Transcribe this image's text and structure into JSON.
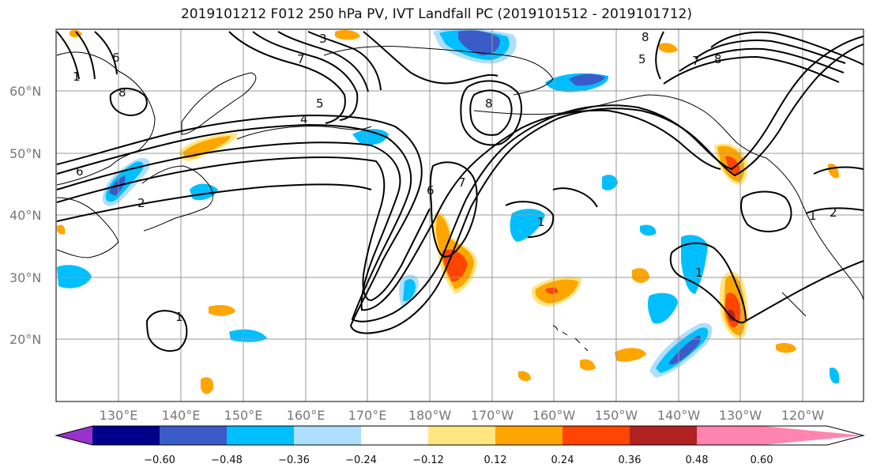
{
  "title": "2019101212 F012 250 hPa PV, IVT Landfall PC (2019101512 - 2019101712)",
  "map": {
    "lon_range": [
      120,
      250
    ],
    "lat_range": [
      10,
      70
    ],
    "lat_labels": [
      "20°N",
      "30°N",
      "40°N",
      "50°N",
      "60°N"
    ],
    "lat_values": [
      20,
      30,
      40,
      50,
      60
    ],
    "lon_labels": [
      "130°E",
      "140°E",
      "150°E",
      "160°E",
      "170°E",
      "180°W",
      "170°W",
      "160°W",
      "150°W",
      "140°W",
      "130°W",
      "120°W"
    ],
    "lon_values": [
      130,
      140,
      150,
      160,
      170,
      180,
      190,
      200,
      210,
      220,
      230,
      240
    ]
  },
  "colorbar": {
    "colors": [
      "#9932CC",
      "#00008B",
      "#3A5BC8",
      "#00BFFF",
      "#AEDFFF",
      "#FFFFFF",
      "#FFE680",
      "#FFA500",
      "#FF4500",
      "#B22222",
      "#FF85B0"
    ],
    "labels": [
      "−0.60",
      "−0.48",
      "−0.36",
      "−0.24",
      "−0.12",
      "0.12",
      "0.24",
      "0.36",
      "0.48",
      "0.60"
    ]
  },
  "contour_labels": [
    "8",
    "6",
    "2",
    "4",
    "5",
    "6",
    "3",
    "7",
    "8",
    "7",
    "8",
    "8",
    "5",
    "6",
    "7",
    "1",
    "1",
    "1",
    "1",
    "1",
    "2"
  ],
  "colors": {
    "contour": "#000000",
    "grid": "#999999",
    "coast": "#000000"
  }
}
